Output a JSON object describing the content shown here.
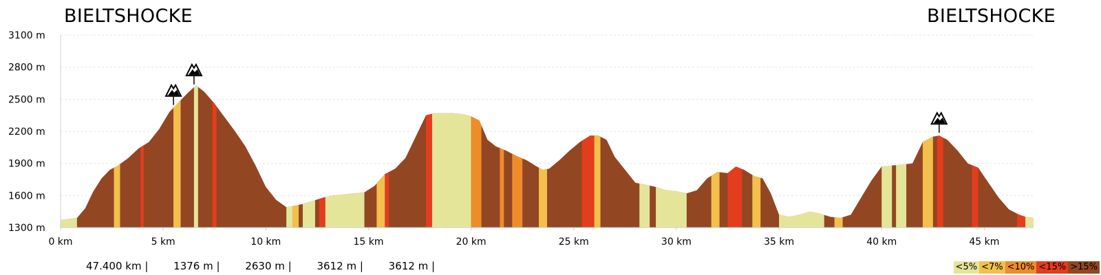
{
  "route": {
    "start_name": "BIELTSHOCKE",
    "end_name": "BIELTSHOCKE"
  },
  "stats": [
    "47.400 km |",
    "1376 m |",
    "2630 m |",
    "3612 m |",
    "3612 m |"
  ],
  "legend": [
    {
      "label": "<5%",
      "color": "#e5e59a"
    },
    {
      "label": "<7%",
      "color": "#f2c04b"
    },
    {
      "label": "<10%",
      "color": "#ee8c2c"
    },
    {
      "label": "<15%",
      "color": "#e33d1e"
    },
    {
      "label": ">15%",
      "color": "#934622"
    }
  ],
  "colors": {
    "steep": "#934622",
    "grid": "#e4e4e4",
    "axis": "#cccccc"
  },
  "summit_icon": "mountain-peak-icon",
  "chart_data": {
    "type": "area",
    "title": "",
    "xlabel": "",
    "ylabel": "",
    "xlim": [
      0,
      47.4
    ],
    "ylim": [
      1300,
      3100
    ],
    "x_unit": "km",
    "y_unit": "m",
    "y_ticks": [
      "1300 m",
      "1600 m",
      "1900 m",
      "2200 m",
      "2500 m",
      "2800 m",
      "3100 m"
    ],
    "x_ticks": [
      "0 km",
      "5 km",
      "10 km",
      "15 km",
      "20 km",
      "25 km",
      "30 km",
      "35 km",
      "40 km",
      "45 km"
    ],
    "grid": true,
    "series": [
      {
        "x": [
          0,
          0.4,
          0.8,
          1.2,
          1.6,
          2.0,
          2.4,
          2.8,
          3.3,
          3.8,
          4.3,
          4.8,
          5.3,
          5.8,
          6.2,
          6.6,
          7.0,
          7.5,
          8.0,
          8.5,
          9.0,
          9.5,
          10.0,
          10.5,
          11.0,
          11.3,
          11.8,
          12.3,
          12.8,
          13.3,
          13.8,
          14.3,
          14.8,
          15.3,
          15.8,
          16.3,
          16.8,
          17.3,
          17.8,
          18.2,
          18.6,
          19.1,
          19.6,
          20.0,
          20.4,
          20.8,
          21.2,
          21.7,
          22.2,
          22.7,
          23.2,
          23.5,
          23.8,
          24.3,
          24.8,
          25.3,
          25.8,
          26.2,
          26.6,
          27.0,
          27.5,
          28.0,
          28.5,
          29.0,
          29.5,
          30.0,
          30.5,
          31.0,
          31.5,
          32.0,
          32.5,
          32.9,
          33.3,
          33.8,
          34.2,
          34.6,
          35.0,
          35.5,
          36.0,
          36.5,
          37.0,
          37.5,
          38.0,
          38.5,
          39.0,
          39.5,
          40.0,
          40.5,
          41.0,
          41.5,
          42.0,
          42.5,
          42.8,
          43.2,
          43.7,
          44.2,
          44.7,
          45.2,
          45.7,
          46.2,
          46.7,
          47.0,
          47.4
        ],
        "y": [
          1370,
          1380,
          1390,
          1480,
          1640,
          1760,
          1840,
          1880,
          1950,
          2040,
          2100,
          2220,
          2380,
          2480,
          2560,
          2630,
          2570,
          2460,
          2330,
          2200,
          2060,
          1880,
          1680,
          1560,
          1490,
          1500,
          1520,
          1550,
          1580,
          1600,
          1610,
          1620,
          1630,
          1690,
          1800,
          1850,
          1950,
          2150,
          2350,
          2370,
          2370,
          2370,
          2360,
          2340,
          2300,
          2120,
          2060,
          2020,
          1970,
          1930,
          1870,
          1840,
          1850,
          1930,
          2020,
          2100,
          2160,
          2160,
          2120,
          1960,
          1840,
          1720,
          1700,
          1680,
          1650,
          1640,
          1620,
          1650,
          1760,
          1820,
          1810,
          1870,
          1840,
          1780,
          1760,
          1620,
          1420,
          1400,
          1420,
          1450,
          1430,
          1400,
          1390,
          1420,
          1580,
          1740,
          1870,
          1880,
          1890,
          1900,
          2100,
          2150,
          2160,
          2120,
          2020,
          1900,
          1860,
          1720,
          1580,
          1470,
          1420,
          1400,
          1390
        ]
      }
    ],
    "gradient_bands": [
      {
        "from": 0.0,
        "to": 0.8,
        "color": "#e5e59a"
      },
      {
        "from": 2.6,
        "to": 2.9,
        "color": "#f2c04b"
      },
      {
        "from": 3.9,
        "to": 4.05,
        "color": "#e33d1e"
      },
      {
        "from": 5.5,
        "to": 5.85,
        "color": "#f2c04b"
      },
      {
        "from": 6.5,
        "to": 6.7,
        "color": "#e5e59a"
      },
      {
        "from": 7.4,
        "to": 7.6,
        "color": "#e33d1e"
      },
      {
        "from": 11.0,
        "to": 11.3,
        "color": "#e5e59a"
      },
      {
        "from": 11.3,
        "to": 11.6,
        "color": "#f2c04b"
      },
      {
        "from": 11.8,
        "to": 12.4,
        "color": "#e5e59a"
      },
      {
        "from": 12.6,
        "to": 12.9,
        "color": "#e33d1e"
      },
      {
        "from": 12.9,
        "to": 14.8,
        "color": "#e5e59a"
      },
      {
        "from": 15.4,
        "to": 15.8,
        "color": "#f2c04b"
      },
      {
        "from": 15.8,
        "to": 16.0,
        "color": "#e33d1e"
      },
      {
        "from": 17.8,
        "to": 18.1,
        "color": "#e33d1e"
      },
      {
        "from": 18.1,
        "to": 20.0,
        "color": "#e5e59a"
      },
      {
        "from": 20.0,
        "to": 20.5,
        "color": "#ee8c2c"
      },
      {
        "from": 21.4,
        "to": 21.6,
        "color": "#ee8c2c"
      },
      {
        "from": 22.0,
        "to": 22.5,
        "color": "#ee8c2c"
      },
      {
        "from": 23.3,
        "to": 23.7,
        "color": "#f2c04b"
      },
      {
        "from": 25.4,
        "to": 26.0,
        "color": "#e33d1e"
      },
      {
        "from": 26.0,
        "to": 26.3,
        "color": "#f2c04b"
      },
      {
        "from": 28.2,
        "to": 28.7,
        "color": "#e5e59a"
      },
      {
        "from": 29.0,
        "to": 30.5,
        "color": "#e5e59a"
      },
      {
        "from": 31.7,
        "to": 32.1,
        "color": "#f2c04b"
      },
      {
        "from": 32.5,
        "to": 33.2,
        "color": "#e33d1e"
      },
      {
        "from": 33.7,
        "to": 34.1,
        "color": "#f2c04b"
      },
      {
        "from": 35.0,
        "to": 37.2,
        "color": "#e5e59a"
      },
      {
        "from": 37.7,
        "to": 38.1,
        "color": "#f2c04b"
      },
      {
        "from": 40.0,
        "to": 40.5,
        "color": "#e5e59a"
      },
      {
        "from": 40.7,
        "to": 41.2,
        "color": "#e5e59a"
      },
      {
        "from": 42.0,
        "to": 42.5,
        "color": "#f2c04b"
      },
      {
        "from": 42.7,
        "to": 43.0,
        "color": "#e33d1e"
      },
      {
        "from": 44.4,
        "to": 44.7,
        "color": "#e33d1e"
      },
      {
        "from": 46.6,
        "to": 47.0,
        "color": "#e33d1e"
      },
      {
        "from": 47.0,
        "to": 47.4,
        "color": "#e5e59a"
      }
    ],
    "summits": [
      {
        "km": 5.5,
        "elev": 2480
      },
      {
        "km": 6.5,
        "elev": 2630
      },
      {
        "km": 42.8,
        "elev": 2160
      }
    ]
  }
}
